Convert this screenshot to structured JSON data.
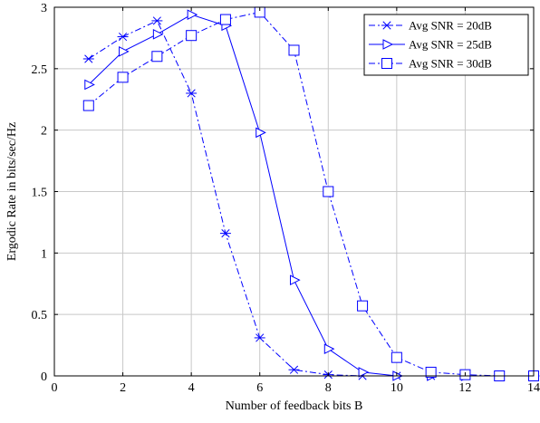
{
  "chart_data": {
    "type": "line",
    "title": "",
    "xlabel": "Number of feedback bits B",
    "ylabel": "Ergodic Rate in bits/sec/Hz",
    "xlim": [
      0,
      14
    ],
    "ylim": [
      0,
      3
    ],
    "xticks": [
      0,
      2,
      4,
      6,
      8,
      10,
      12,
      14
    ],
    "yticks": [
      0,
      0.5,
      1,
      1.5,
      2,
      2.5,
      3
    ],
    "xtick_labels": [
      "0",
      "2",
      "4",
      "6",
      "8",
      "10",
      "12",
      "14"
    ],
    "ytick_labels": [
      "0",
      "0.5",
      "1",
      "1.5",
      "2",
      "2.5",
      "3"
    ],
    "grid": true,
    "legend_position": "top-right",
    "x": [
      1,
      2,
      3,
      4,
      5,
      6,
      7,
      8,
      9,
      10,
      11,
      12,
      13,
      14
    ],
    "series": [
      {
        "name": "Avg SNR = 20dB",
        "marker": "asterisk",
        "line_style": "dash-dot",
        "color": "#0000ff",
        "values": [
          2.58,
          2.76,
          2.89,
          2.3,
          1.16,
          0.31,
          0.05,
          0.01,
          0.0,
          0.0,
          0.0,
          0.0,
          0.0,
          0.0
        ]
      },
      {
        "name": "Avg SNR = 25dB",
        "marker": "triangle-right",
        "line_style": "solid",
        "color": "#0000ff",
        "values": [
          2.37,
          2.64,
          2.78,
          2.94,
          2.85,
          1.98,
          0.78,
          0.22,
          0.03,
          0.0,
          0.0,
          0.0,
          0.0,
          0.0
        ]
      },
      {
        "name": "Avg SNR = 30dB",
        "marker": "square",
        "line_style": "dash-dot",
        "color": "#0000ff",
        "values": [
          2.2,
          2.43,
          2.6,
          2.77,
          2.9,
          2.96,
          2.65,
          1.5,
          0.57,
          0.15,
          0.03,
          0.01,
          0.0,
          0.0
        ]
      }
    ]
  }
}
